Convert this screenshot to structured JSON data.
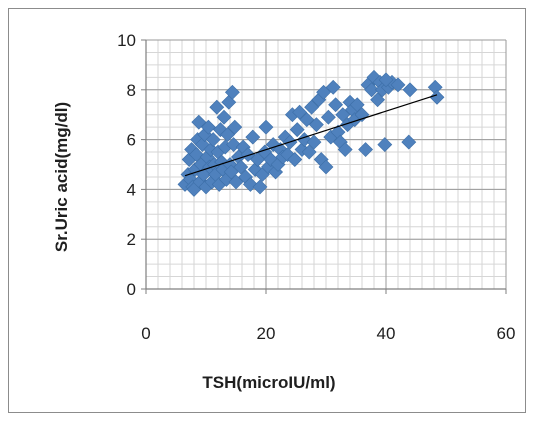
{
  "chart_data": {
    "type": "scatter",
    "title": "",
    "xlabel": "TSH(microIU/ml)",
    "ylabel": "Sr.Uric acid(mg/dl)",
    "xlim": [
      0,
      60
    ],
    "ylim": [
      0,
      10
    ],
    "x_ticks": [
      0,
      20,
      40,
      60
    ],
    "y_ticks": [
      0,
      2,
      4,
      6,
      8,
      10
    ],
    "x_tick_labels": [
      "0",
      "20",
      "40",
      "60"
    ],
    "y_tick_labels": [
      "0",
      "2",
      "4",
      "6",
      "8",
      "10"
    ],
    "x_minor_step": 2,
    "y_minor_step": 0.5,
    "grid": true,
    "legend": "none",
    "marker": "diamond",
    "marker_color": "#4f81bd",
    "trendline": {
      "type": "linear",
      "color": "#000000",
      "x": [
        6.5,
        48.5
      ],
      "y": [
        4.55,
        7.8
      ]
    },
    "series": [
      {
        "points": [
          [
            6.5,
            4.2
          ],
          [
            7,
            4.6
          ],
          [
            7.2,
            5.2
          ],
          [
            7.4,
            4.4
          ],
          [
            7.6,
            5.6
          ],
          [
            7.8,
            4.1
          ],
          [
            8,
            4.0
          ],
          [
            8.2,
            4.8
          ],
          [
            8.4,
            5.4
          ],
          [
            8.6,
            6.0
          ],
          [
            8.8,
            6.7
          ],
          [
            9,
            4.3
          ],
          [
            9.2,
            5.0
          ],
          [
            9.4,
            5.8
          ],
          [
            9.6,
            4.6
          ],
          [
            9.8,
            6.2
          ],
          [
            10,
            4.1
          ],
          [
            10.2,
            5.3
          ],
          [
            10.4,
            6.5
          ],
          [
            10.6,
            4.9
          ],
          [
            10.8,
            5.6
          ],
          [
            11,
            4.3
          ],
          [
            11.2,
            6.0
          ],
          [
            11.4,
            5.0
          ],
          [
            11.6,
            4.6
          ],
          [
            11.8,
            7.3
          ],
          [
            12,
            5.5
          ],
          [
            12.2,
            4.2
          ],
          [
            12.4,
            6.4
          ],
          [
            12.6,
            5.1
          ],
          [
            12.8,
            4.8
          ],
          [
            13,
            6.9
          ],
          [
            13.2,
            5.7
          ],
          [
            13.4,
            4.4
          ],
          [
            13.6,
            6.2
          ],
          [
            13.8,
            7.5
          ],
          [
            14,
            5.0
          ],
          [
            14.2,
            4.7
          ],
          [
            14.4,
            7.9
          ],
          [
            14.6,
            5.8
          ],
          [
            14.8,
            6.5
          ],
          [
            15,
            4.3
          ],
          [
            15.4,
            5.3
          ],
          [
            15.8,
            4.9
          ],
          [
            16.2,
            5.7
          ],
          [
            16.6,
            4.5
          ],
          [
            17,
            5.4
          ],
          [
            17.4,
            4.2
          ],
          [
            17.8,
            6.1
          ],
          [
            18.2,
            4.8
          ],
          [
            18.6,
            5.2
          ],
          [
            19,
            4.1
          ],
          [
            19.4,
            4.6
          ],
          [
            19.8,
            5.5
          ],
          [
            20,
            6.5
          ],
          [
            20.4,
            4.9
          ],
          [
            20.8,
            5.2
          ],
          [
            21.2,
            5.8
          ],
          [
            21.6,
            4.7
          ],
          [
            22,
            5.0
          ],
          [
            22.4,
            5.6
          ],
          [
            22.8,
            5.3
          ],
          [
            23.2,
            6.1
          ],
          [
            23.6,
            5.4
          ],
          [
            24,
            5.9
          ],
          [
            24.4,
            7.0
          ],
          [
            24.8,
            5.2
          ],
          [
            25.2,
            6.4
          ],
          [
            25.6,
            7.1
          ],
          [
            26,
            5.6
          ],
          [
            26.4,
            6.0
          ],
          [
            26.8,
            6.8
          ],
          [
            27.2,
            5.5
          ],
          [
            27.6,
            7.3
          ],
          [
            28,
            5.9
          ],
          [
            28.4,
            6.6
          ],
          [
            28.8,
            7.6
          ],
          [
            29.2,
            5.2
          ],
          [
            29.6,
            7.9
          ],
          [
            30,
            4.9
          ],
          [
            30.4,
            6.9
          ],
          [
            30.8,
            6.1
          ],
          [
            31.2,
            8.1
          ],
          [
            31.6,
            7.4
          ],
          [
            32,
            6.3
          ],
          [
            32.4,
            5.9
          ],
          [
            32.8,
            7.0
          ],
          [
            33.2,
            5.6
          ],
          [
            33.6,
            6.6
          ],
          [
            34,
            7.5
          ],
          [
            34.4,
            7.2
          ],
          [
            34.8,
            6.8
          ],
          [
            35.2,
            7.4
          ],
          [
            36,
            7.0
          ],
          [
            36.6,
            5.6
          ],
          [
            37,
            8.2
          ],
          [
            37.6,
            8.0
          ],
          [
            38,
            8.5
          ],
          [
            38.6,
            7.6
          ],
          [
            39,
            8.3
          ],
          [
            39.4,
            8.0
          ],
          [
            39.8,
            5.8
          ],
          [
            40.4,
            8.1
          ],
          [
            41,
            8.3
          ],
          [
            42,
            8.2
          ],
          [
            43.8,
            5.9
          ],
          [
            44,
            8.0
          ],
          [
            48.2,
            8.1
          ],
          [
            48.5,
            7.7
          ],
          [
            40,
            8.4
          ]
        ]
      }
    ]
  }
}
